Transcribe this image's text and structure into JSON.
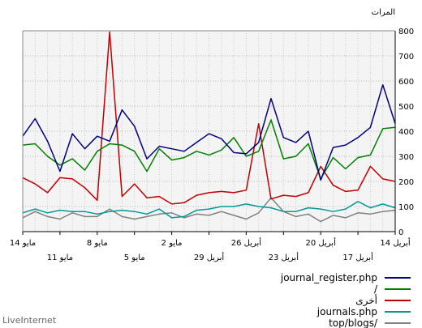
{
  "chart_data": {
    "type": "line",
    "ylabel": "المرات",
    "ylim": [
      0,
      800
    ],
    "yticks": [
      0,
      100,
      200,
      300,
      400,
      500,
      600,
      700,
      800
    ],
    "grid": true,
    "legend_position": "bottom-right",
    "x_labels_upper": [
      "14 مايو",
      "8 مايو",
      "2 مايو",
      "26 أبريل",
      "20 أبريل",
      "14 أبريل"
    ],
    "x_labels_lower": [
      "11 مايو",
      "5 مايو",
      "29 أبريل",
      "23 أبريل",
      "17 أبريل"
    ],
    "series": [
      {
        "name": "journal_register.php",
        "color": "#000080",
        "values": [
          380,
          450,
          360,
          240,
          390,
          330,
          380,
          360,
          485,
          420,
          290,
          340,
          330,
          320,
          355,
          390,
          370,
          315,
          310,
          355,
          530,
          375,
          355,
          400,
          205,
          335,
          345,
          375,
          415,
          585,
          430
        ]
      },
      {
        "name": "/",
        "color": "#008000",
        "values": [
          345,
          350,
          300,
          265,
          290,
          245,
          320,
          350,
          345,
          320,
          240,
          330,
          285,
          295,
          320,
          305,
          325,
          375,
          300,
          320,
          445,
          290,
          300,
          350,
          210,
          295,
          250,
          295,
          305,
          410,
          415
        ]
      },
      {
        "name": "أخرى",
        "color": "#c00000",
        "values": [
          215,
          190,
          155,
          215,
          210,
          175,
          125,
          795,
          140,
          190,
          135,
          140,
          110,
          115,
          145,
          155,
          160,
          155,
          165,
          430,
          130,
          145,
          140,
          155,
          260,
          185,
          160,
          165,
          260,
          210,
          200
        ]
      },
      {
        "name": "journals.php",
        "color": "#009999",
        "values": [
          75,
          90,
          75,
          85,
          80,
          80,
          70,
          80,
          85,
          80,
          70,
          90,
          55,
          60,
          85,
          90,
          100,
          100,
          110,
          100,
          95,
          80,
          80,
          95,
          90,
          80,
          90,
          120,
          95,
          110,
          95
        ]
      },
      {
        "name": "top/blogs/",
        "color": "#808080",
        "values": [
          55,
          80,
          60,
          50,
          75,
          60,
          60,
          90,
          60,
          50,
          60,
          70,
          75,
          55,
          70,
          65,
          80,
          65,
          50,
          75,
          135,
          80,
          60,
          70,
          40,
          65,
          55,
          75,
          70,
          80,
          85
        ]
      }
    ]
  },
  "brand": "LiveInternet"
}
